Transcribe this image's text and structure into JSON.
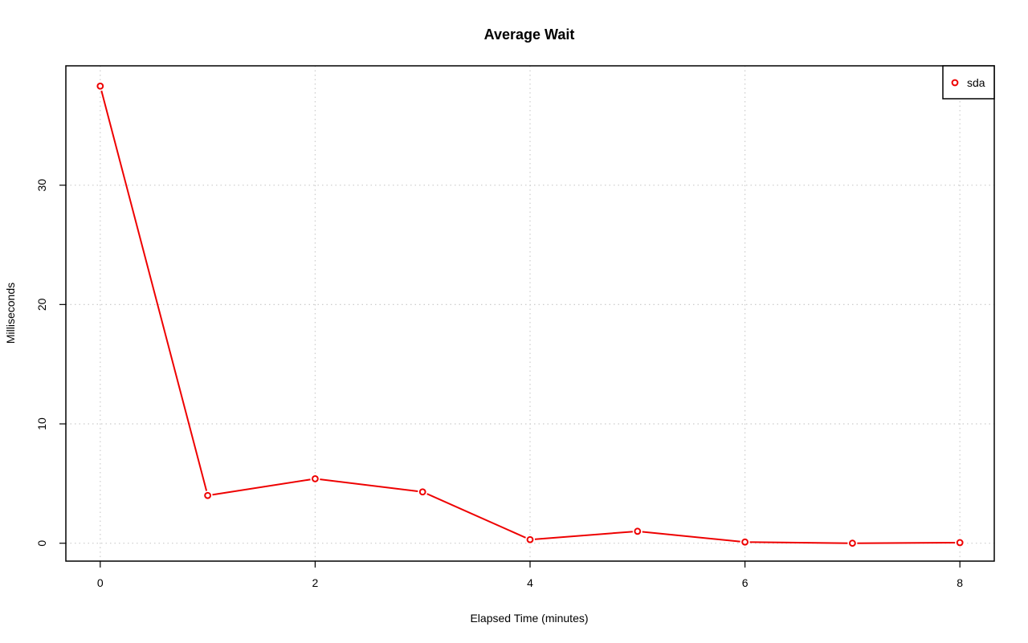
{
  "chart_data": {
    "type": "line",
    "title": "Average Wait",
    "xlabel": "Elapsed Time (minutes)",
    "ylabel": "Milliseconds",
    "x": [
      0,
      1,
      2,
      3,
      4,
      5,
      6,
      7,
      8
    ],
    "series": [
      {
        "name": "sda",
        "color": "#ee0000",
        "values": [
          38.3,
          4.0,
          5.4,
          4.3,
          0.3,
          1.0,
          0.1,
          0.0,
          0.05
        ]
      }
    ],
    "xlim": [
      -0.32,
      8.32
    ],
    "ylim": [
      -1.5,
      40.0
    ],
    "x_ticks": [
      0,
      2,
      4,
      6,
      8
    ],
    "y_ticks": [
      0,
      10,
      20,
      30
    ],
    "grid_x": [
      0,
      2,
      4,
      6,
      8
    ],
    "grid_y": [
      0,
      10,
      20,
      30
    ],
    "grid": true,
    "legend": {
      "position": "top-right"
    }
  }
}
